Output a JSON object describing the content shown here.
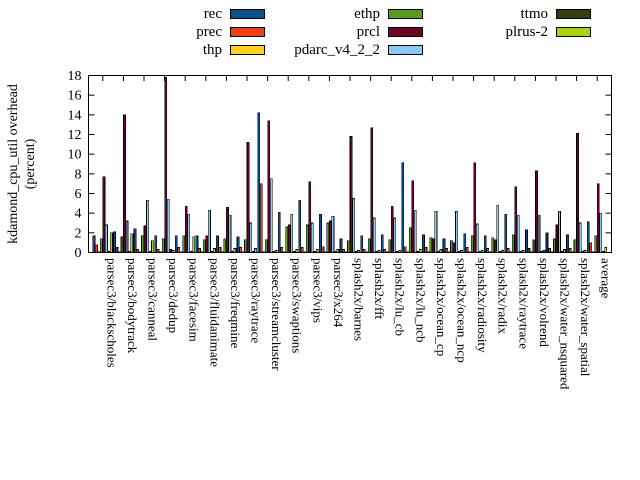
{
  "chart_data": {
    "type": "bar",
    "title": "",
    "xlabel": "",
    "ylabel_lines": [
      "kdamond_cpu_util overhead",
      "(percent)"
    ],
    "ylim": [
      0,
      18
    ],
    "yticks": [
      0,
      2,
      4,
      6,
      8,
      10,
      12,
      14,
      16,
      18
    ],
    "grid": false,
    "legend_position": "top-center-3-columns",
    "legend_columns": [
      [
        "rec",
        "prec",
        "thp"
      ],
      [
        "ethp",
        "prcl",
        "pdarc_v4_2_2"
      ],
      [
        "ttmo",
        "plrus-2"
      ]
    ],
    "categories": [
      "parsec3/blackscholes",
      "parsec3/bodytrack",
      "parsec3/canneal",
      "parsec3/dedup",
      "parsec3/facesim",
      "parsec3/fluidanimate",
      "parsec3/freqmine",
      "parsec3/raytrace",
      "parsec3/streamcluster",
      "parsec3/swaptions",
      "parsec3/vips",
      "parsec3/x264",
      "splash2x/barnes",
      "splash2x/fft",
      "splash2x/lu_cb",
      "splash2x/lu_ncb",
      "splash2x/ocean_cp",
      "splash2x/ocean_ncp",
      "splash2x/radiosity",
      "splash2x/radix",
      "splash2x/raytrace",
      "splash2x/volrend",
      "splash2x/water_nsquared",
      "splash2x/water_spatial",
      "average"
    ],
    "series": [
      {
        "name": "rec",
        "color": "#0b4f8c",
        "values": [
          1.7,
          2.1,
          2.4,
          1.7,
          1.7,
          1.7,
          1.7,
          1.6,
          14.2,
          4.1,
          5.3,
          3.9,
          1.4,
          1.7,
          1.8,
          9.1,
          1.8,
          1.4,
          1.9,
          1.7,
          3.9,
          2.3,
          2.0,
          1.8,
          3.1
        ]
      },
      {
        "name": "prec",
        "color": "#f43d11",
        "values": [
          0.8,
          0.5,
          0.3,
          0.3,
          0.5,
          0.4,
          0.5,
          0.5,
          7.0,
          0.5,
          0.5,
          0.6,
          0.3,
          0.3,
          0.3,
          0.6,
          0.5,
          0.4,
          0.5,
          0.4,
          0.4,
          0.4,
          0.4,
          0.4,
          1.0
        ]
      },
      {
        "name": "thp",
        "color": "#fcd116",
        "values": [
          0.05,
          0.05,
          0.05,
          0.05,
          0.05,
          0.05,
          0.05,
          0.05,
          0.05,
          0.05,
          0.05,
          0.05,
          0.05,
          0.05,
          0.05,
          0.05,
          0.05,
          0.05,
          0.05,
          0.05,
          0.05,
          0.05,
          0.05,
          0.05,
          0.05
        ]
      },
      {
        "name": "ethp",
        "color": "#569d1c",
        "values": [
          1.4,
          1.6,
          1.7,
          1.4,
          1.7,
          1.3,
          1.4,
          1.3,
          1.3,
          2.6,
          2.8,
          3.0,
          1.2,
          1.4,
          1.3,
          2.5,
          1.5,
          1.2,
          1.7,
          1.5,
          1.8,
          1.3,
          1.4,
          1.3,
          1.7
        ]
      },
      {
        "name": "prcl",
        "color": "#6f0326",
        "values": [
          7.7,
          14.0,
          2.7,
          17.8,
          4.7,
          1.7,
          4.6,
          11.2,
          13.4,
          2.8,
          7.2,
          3.2,
          11.8,
          12.7,
          4.7,
          7.3,
          1.4,
          1.0,
          9.1,
          1.3,
          6.7,
          8.3,
          2.8,
          12.1,
          7.0
        ]
      },
      {
        "name": "pdarc_v4_2_2",
        "color": "#85c9f7",
        "values": [
          2.8,
          3.2,
          5.3,
          5.4,
          3.9,
          4.3,
          3.8,
          3.0,
          7.5,
          3.9,
          3.0,
          3.7,
          5.5,
          3.5,
          3.5,
          4.3,
          4.2,
          4.2,
          2.9,
          4.8,
          3.8,
          3.8,
          4.2,
          3.0,
          4.0
        ]
      },
      {
        "name": "ttmo",
        "color": "#31400a",
        "values": [
          0.1,
          0.1,
          0.1,
          0.3,
          0.1,
          0.1,
          0.1,
          0.1,
          0.1,
          0.1,
          0.1,
          0.1,
          0.1,
          0.1,
          0.1,
          0.1,
          0.1,
          0.1,
          0.1,
          0.1,
          0.1,
          0.1,
          0.1,
          0.1,
          0.1
        ]
      },
      {
        "name": "plrus-2",
        "color": "#aad406",
        "values": [
          2.0,
          1.9,
          1.2,
          0.2,
          1.6,
          0.4,
          0.4,
          0.4,
          0.2,
          0.3,
          0.3,
          0.3,
          0.2,
          0.2,
          0.2,
          0.3,
          0.3,
          0.2,
          0.2,
          0.2,
          0.2,
          0.2,
          0.3,
          0.2,
          0.5
        ]
      }
    ]
  }
}
